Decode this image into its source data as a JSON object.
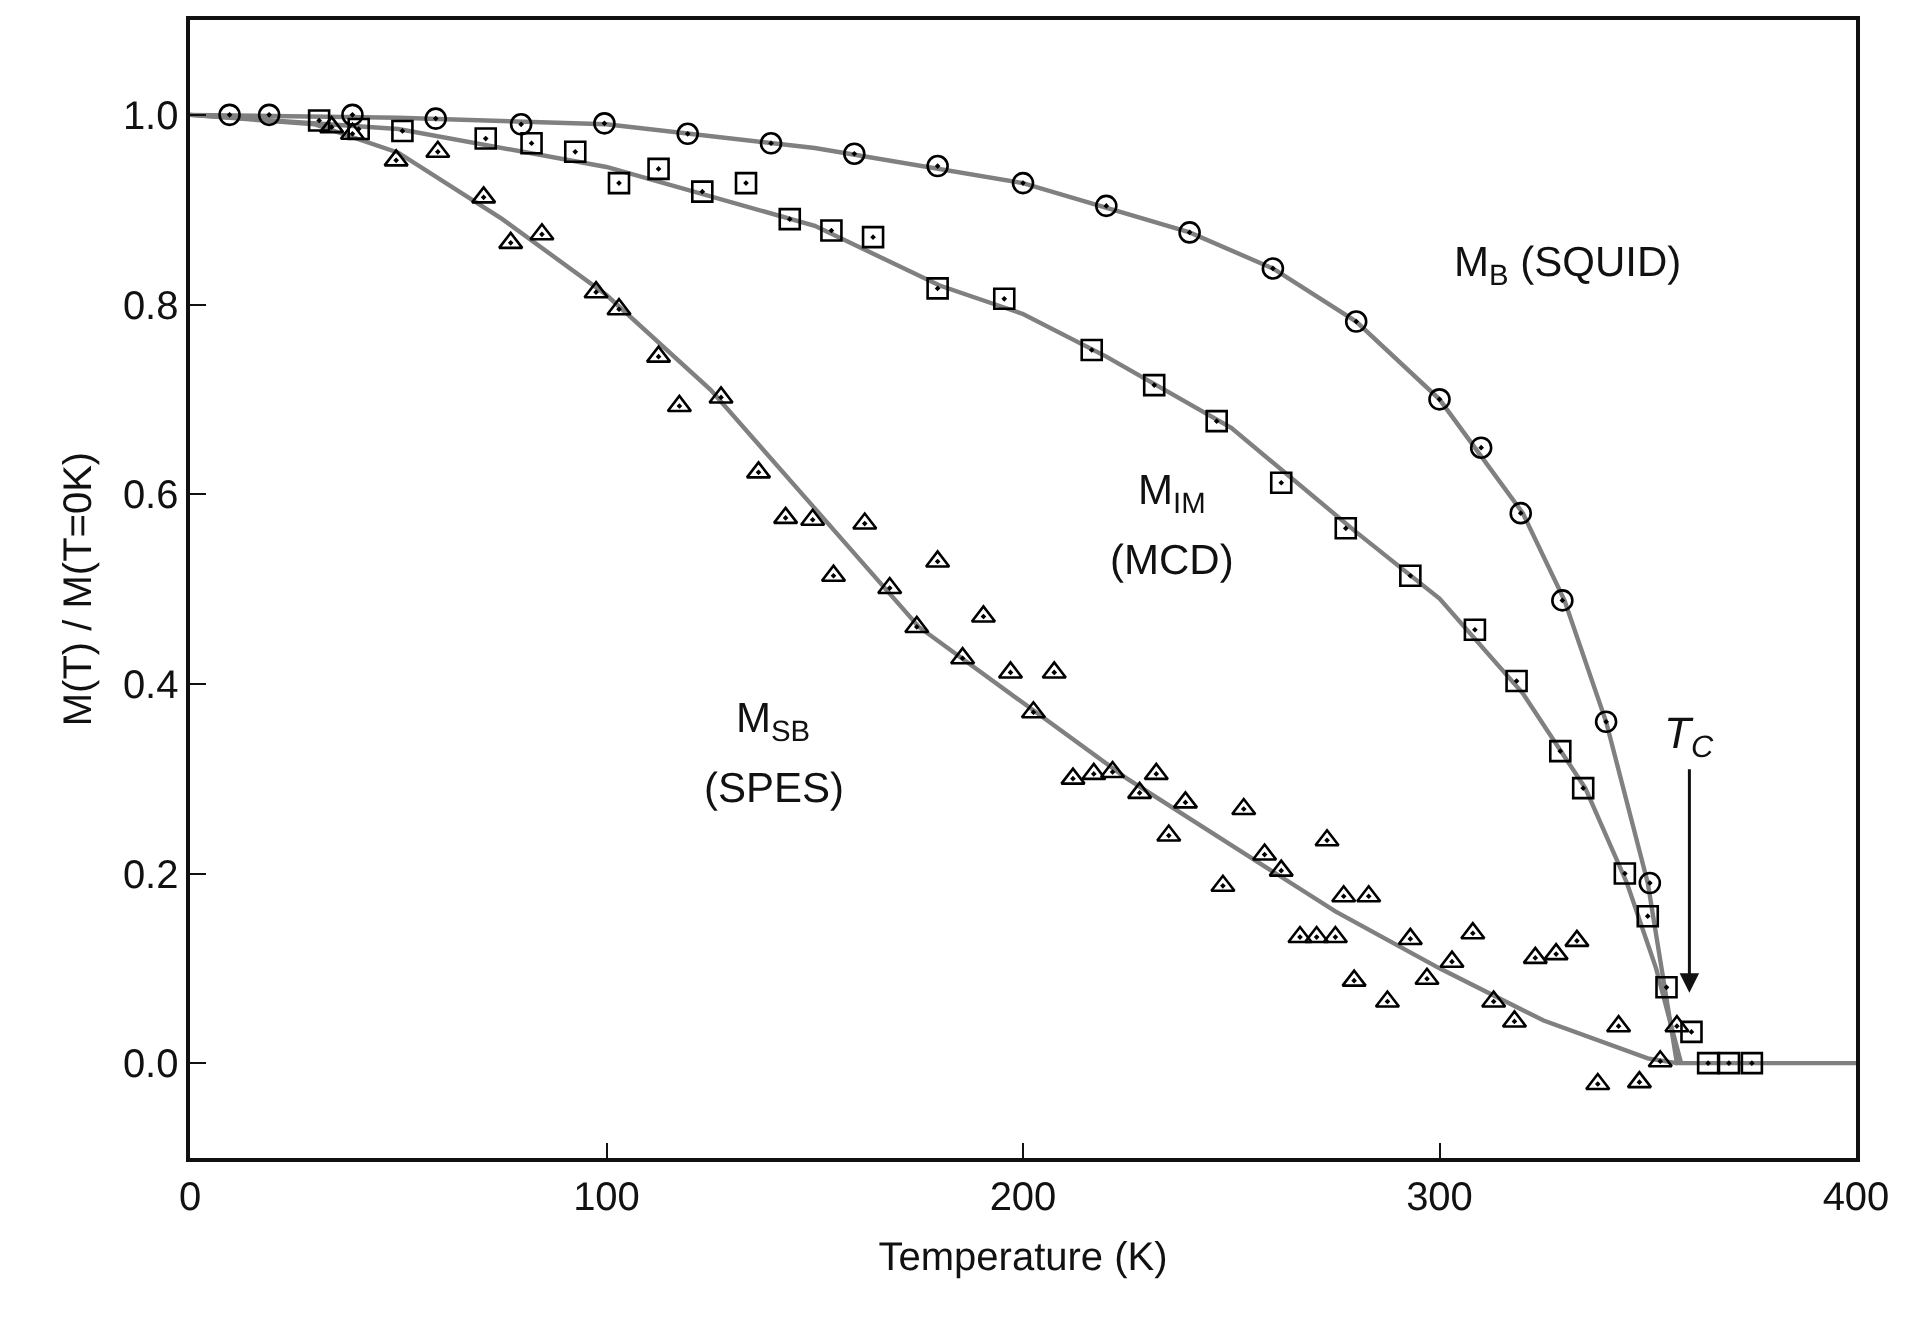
{
  "chart_data": {
    "type": "scatter",
    "xlabel": "Temperature (K)",
    "ylabel": "M(T) / M(T=0K)",
    "xlim": [
      0,
      400
    ],
    "ylim": [
      -0.1,
      1.1
    ],
    "xticks": [
      0,
      100,
      200,
      300,
      400
    ],
    "yticks": [
      {
        "value": 0,
        "label": "0.0"
      },
      0.2,
      0.4,
      0.6,
      0.8,
      {
        "value": 1,
        "label": "1.0"
      }
    ],
    "grid": false,
    "series": [
      {
        "type": "line",
        "color": "#808080",
        "marker": "none",
        "x": [
          0,
          50,
          100,
          150,
          200,
          240,
          260,
          280,
          300,
          320,
          330,
          340,
          350,
          357,
          400
        ],
        "values": [
          1.0,
          0.997,
          0.99,
          0.965,
          0.928,
          0.876,
          0.838,
          0.782,
          0.7,
          0.58,
          0.488,
          0.36,
          0.19,
          0,
          0
        ]
      },
      {
        "type": "line",
        "color": "#808080",
        "marker": "none",
        "x": [
          0,
          50,
          100,
          150,
          180,
          200,
          220,
          250,
          280,
          300,
          320,
          335,
          345,
          352,
          358
        ],
        "values": [
          1.0,
          0.985,
          0.945,
          0.883,
          0.82,
          0.79,
          0.745,
          0.67,
          0.56,
          0.49,
          0.39,
          0.29,
          0.19,
          0.1,
          0
        ]
      },
      {
        "type": "line",
        "color": "#808080",
        "marker": "none",
        "x": [
          0,
          30,
          50,
          75,
          100,
          125,
          150,
          175,
          200,
          225,
          250,
          275,
          300,
          325,
          350,
          357
        ],
        "values": [
          1.0,
          0.99,
          0.96,
          0.89,
          0.81,
          0.71,
          0.585,
          0.46,
          0.38,
          0.3,
          0.23,
          0.16,
          0.1,
          0.045,
          0.005,
          0
        ]
      },
      {
        "color": "#000000",
        "marker": "circle",
        "x": [
          9.5,
          19,
          39,
          59,
          79.5,
          99.5,
          119.5,
          139.5,
          159.5,
          179.5,
          200,
          220,
          240,
          260,
          280,
          300,
          310,
          319.5,
          329.5,
          340,
          350.5
        ],
        "values": [
          1.0,
          1.0,
          1.0,
          0.996,
          0.99,
          0.991,
          0.98,
          0.97,
          0.959,
          0.946,
          0.928,
          0.904,
          0.876,
          0.838,
          0.782,
          0.7,
          0.649,
          0.58,
          0.488,
          0.36,
          0.19
        ]
      },
      {
        "color": "#000000",
        "marker": "square",
        "x": [
          31,
          40.5,
          51,
          71,
          82,
          92.5,
          103,
          112.5,
          123,
          133.5,
          144,
          154,
          164,
          179.5,
          195.5,
          216.5,
          231.5,
          246.5,
          262,
          277.5,
          293,
          308.5,
          318.5,
          329,
          334.5,
          344.5,
          350,
          354.5,
          360.5,
          364.5,
          369.5,
          375
        ],
        "values": [
          0.994,
          0.985,
          0.983,
          0.975,
          0.97,
          0.961,
          0.928,
          0.943,
          0.919,
          0.928,
          0.89,
          0.878,
          0.871,
          0.817,
          0.806,
          0.752,
          0.715,
          0.677,
          0.612,
          0.564,
          0.514,
          0.457,
          0.403,
          0.329,
          0.29,
          0.2,
          0.155,
          0.08,
          0.033,
          0,
          0,
          0
        ]
      },
      {
        "color": "#000000",
        "marker": "triangle",
        "x": [
          34,
          39,
          49.5,
          59.5,
          70.5,
          77,
          84.5,
          97.5,
          103,
          112.5,
          117.5,
          127.5,
          136.5,
          143,
          149.5,
          162,
          154.5,
          168,
          174.5,
          179.5,
          190.5,
          185.5,
          197,
          207.5,
          202.5,
          212,
          217,
          221.5,
          228,
          232,
          239,
          235,
          253,
          248,
          258,
          262,
          273,
          277,
          283,
          266.5,
          270.5,
          275,
          279.5,
          287.5,
          293,
          297,
          303,
          308,
          313,
          318,
          323,
          328,
          333,
          343,
          338,
          348,
          353,
          357
        ],
        "values": [
          0.987,
          0.98,
          0.952,
          0.961,
          0.913,
          0.865,
          0.874,
          0.813,
          0.795,
          0.745,
          0.693,
          0.702,
          0.623,
          0.575,
          0.573,
          0.569,
          0.514,
          0.501,
          0.46,
          0.529,
          0.471,
          0.427,
          0.412,
          0.412,
          0.37,
          0.3,
          0.305,
          0.307,
          0.285,
          0.305,
          0.275,
          0.24,
          0.268,
          0.187,
          0.22,
          0.203,
          0.235,
          0.176,
          0.176,
          0.133,
          0.133,
          0.133,
          0.087,
          0.065,
          0.131,
          0.089,
          0.107,
          0.137,
          0.065,
          0.044,
          0.111,
          0.115,
          0.129,
          0.039,
          -0.022,
          -0.02,
          0.002,
          0.039
        ]
      }
    ],
    "annotations": [
      "M$_{B}$ (SQUID)",
      "M$_{IM}$",
      "(MCD)",
      "M$_{SB}$",
      "(SPES)",
      "T$_{C}$"
    ]
  }
}
